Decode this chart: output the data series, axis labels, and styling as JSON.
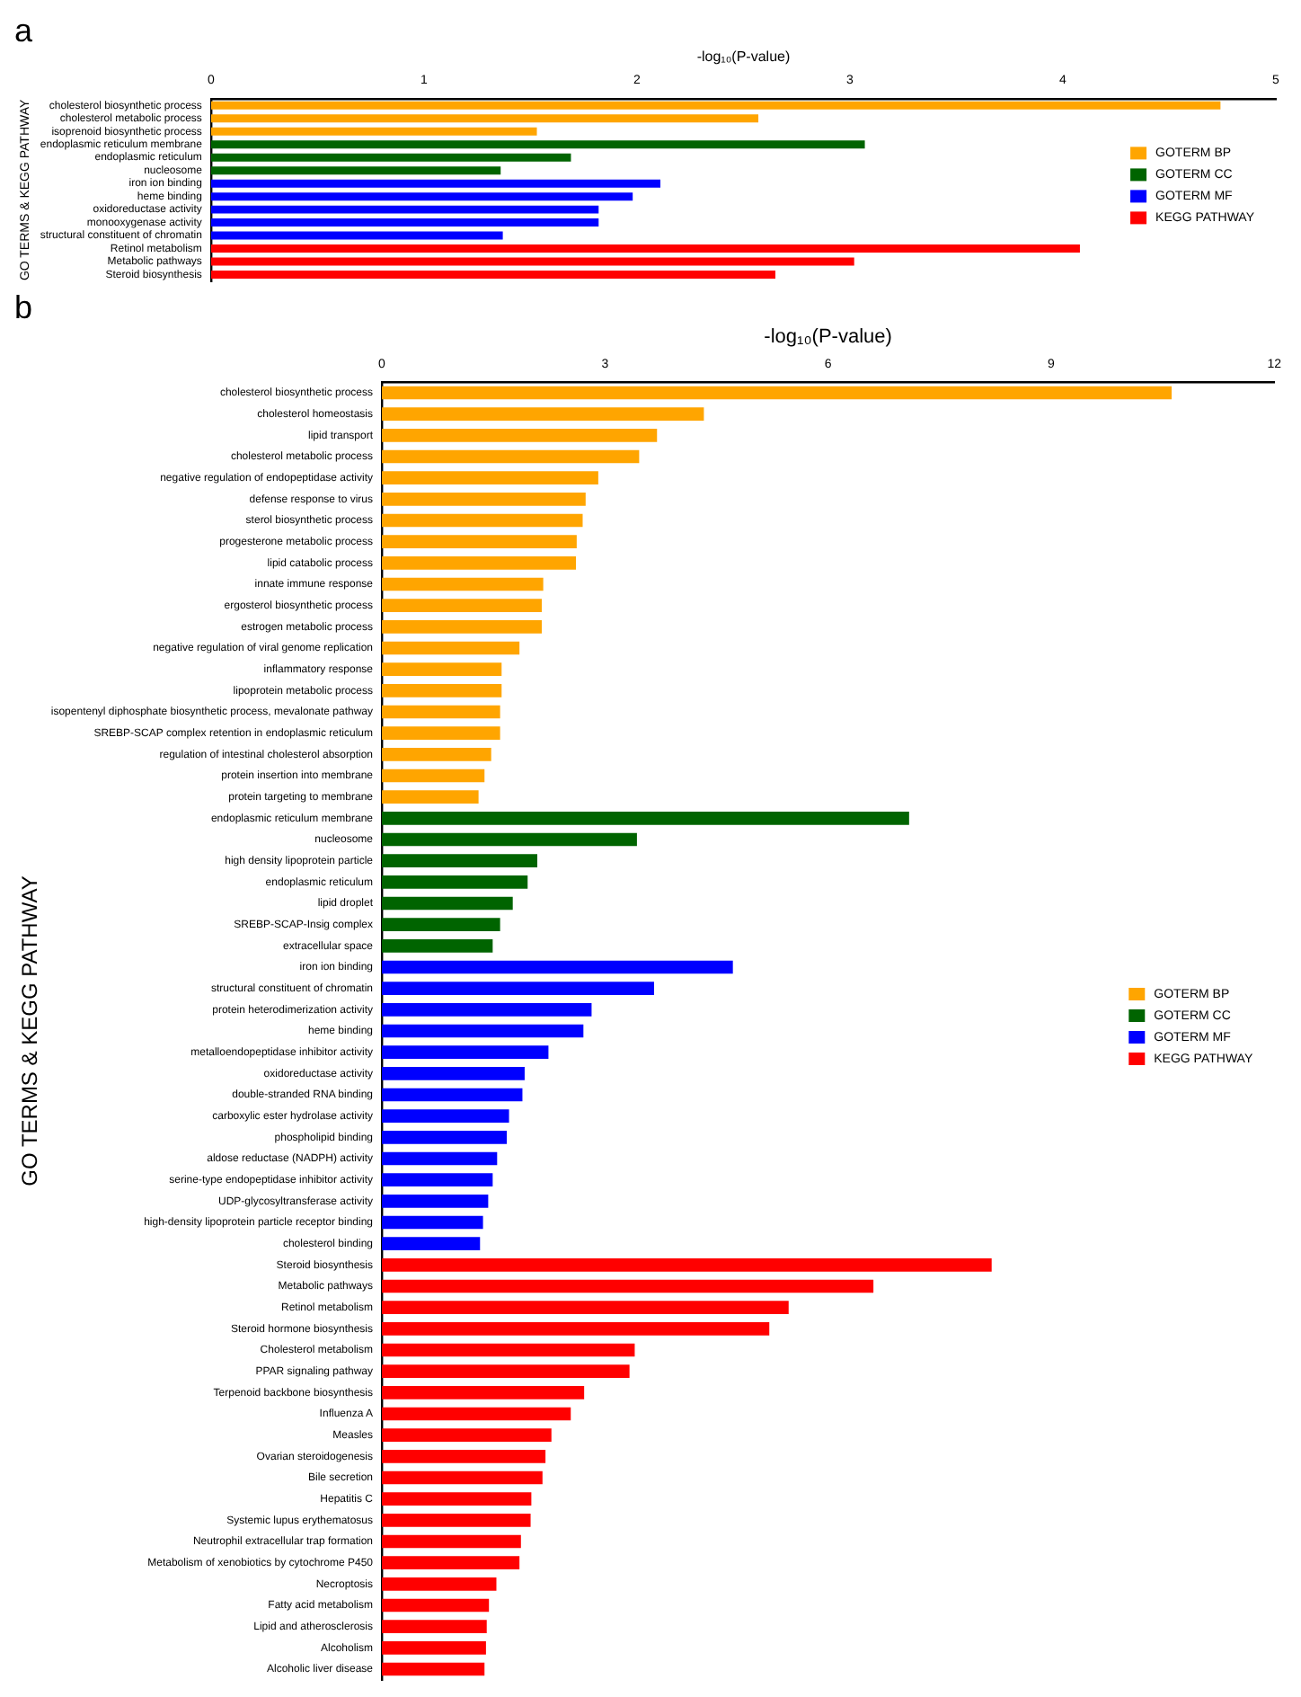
{
  "chart_data": [
    {
      "type": "bar",
      "title": "a",
      "xlabel": "-log₁₀(P-value)",
      "ylabel": "GO TERMS & KEGG PATHWAY",
      "orientation": "horizontal",
      "categories": [
        "cholesterol biosynthetic process",
        "cholesterol metabolic process",
        "isoprenoid biosynthetic process",
        "endoplasmic reticulum membrane",
        "endoplasmic reticulum",
        "nucleosome",
        "iron ion binding",
        "heme binding",
        "oxidoreductase activity",
        "monooxygenase activity",
        "structural constituent of chromatin",
        "Retinol metabolism",
        "Metabolic pathways",
        "Steroid biosynthesis"
      ],
      "series": [
        {
          "name": "GOTERM BP",
          "color": "#ffa500",
          "values": [
            4.74,
            2.57,
            1.53,
            null,
            null,
            null,
            null,
            null,
            null,
            null,
            null,
            null,
            null,
            null
          ]
        },
        {
          "name": "GOTERM CC",
          "color": "#006400",
          "values": [
            null,
            null,
            null,
            3.07,
            1.69,
            1.36,
            null,
            null,
            null,
            null,
            null,
            null,
            null,
            null
          ]
        },
        {
          "name": "GOTERM MF",
          "color": "#0000ff",
          "values": [
            null,
            null,
            null,
            null,
            null,
            null,
            2.11,
            1.98,
            1.82,
            1.82,
            1.37,
            null,
            null,
            null
          ]
        },
        {
          "name": "KEGG PATHWAY",
          "color": "#ff0000",
          "values": [
            null,
            null,
            null,
            null,
            null,
            null,
            null,
            null,
            null,
            null,
            null,
            4.08,
            3.02,
            2.65
          ]
        }
      ],
      "xlim": [
        0,
        5
      ],
      "xticks": [
        0,
        1,
        2,
        3,
        4,
        5
      ],
      "grid": false,
      "legend": "right"
    },
    {
      "type": "bar",
      "title": "b",
      "xlabel": "-log₁₀(P-value)",
      "ylabel": "GO TERMS & KEGG PATHWAY",
      "orientation": "horizontal",
      "categories": [
        "cholesterol biosynthetic process",
        "cholesterol homeostasis",
        "lipid transport",
        "cholesterol metabolic process",
        "negative regulation of endopeptidase activity",
        "defense response to virus",
        "sterol biosynthetic process",
        "progesterone metabolic process",
        "lipid catabolic process",
        "innate immune response",
        "ergosterol biosynthetic process",
        "estrogen metabolic process",
        "negative regulation of viral genome replication",
        "inflammatory response",
        "lipoprotein metabolic process",
        "isopentenyl diphosphate biosynthetic process, mevalonate pathway",
        "SREBP-SCAP complex retention in endoplasmic reticulum",
        "regulation of intestinal cholesterol absorption",
        "protein insertion into membrane",
        "protein targeting to membrane",
        "endoplasmic reticulum membrane",
        "nucleosome",
        "high density lipoprotein particle",
        "endoplasmic reticulum",
        "lipid droplet",
        "SREBP-SCAP-Insig complex",
        "extracellular space",
        "iron ion binding",
        "structural constituent of chromatin",
        "protein heterodimerization activity",
        "heme binding",
        "metalloendopeptidase inhibitor activity",
        "oxidoreductase activity",
        "double-stranded RNA binding",
        "carboxylic ester hydrolase activity",
        "phospholipid binding",
        "aldose reductase (NADPH) activity",
        "serine-type endopeptidase inhibitor activity",
        "UDP-glycosyltransferase activity",
        "high-density lipoprotein particle receptor binding",
        "cholesterol binding",
        "Steroid biosynthesis",
        "Metabolic pathways",
        "Retinol metabolism",
        "Steroid hormone biosynthesis",
        "Cholesterol metabolism",
        "PPAR signaling pathway",
        "Terpenoid backbone biosynthesis",
        "Influenza A",
        "Measles",
        "Ovarian steroidogenesis",
        "Bile secretion",
        "Hepatitis C",
        "Systemic lupus erythematosus",
        "Neutrophil extracellular trap formation",
        "Metabolism of xenobiotics by cytochrome P450",
        "Necroptosis",
        "Fatty acid metabolism",
        "Lipid and atherosclerosis",
        "Alcoholism",
        "Alcoholic liver disease"
      ],
      "series": [
        {
          "name": "GOTERM BP",
          "color": "#ffa500",
          "values": [
            10.62,
            4.33,
            3.7,
            3.46,
            2.91,
            2.74,
            2.7,
            2.62,
            2.61,
            2.17,
            2.15,
            2.15,
            1.85,
            1.61,
            1.61,
            1.59,
            1.59,
            1.47,
            1.38,
            1.3,
            null,
            null,
            null,
            null,
            null,
            null,
            null,
            null,
            null,
            null,
            null,
            null,
            null,
            null,
            null,
            null,
            null,
            null,
            null,
            null,
            null,
            null,
            null,
            null,
            null,
            null,
            null,
            null,
            null,
            null,
            null,
            null,
            null,
            null,
            null,
            null,
            null,
            null,
            null,
            null,
            null
          ]
        },
        {
          "name": "GOTERM CC",
          "color": "#006400",
          "values": [
            null,
            null,
            null,
            null,
            null,
            null,
            null,
            null,
            null,
            null,
            null,
            null,
            null,
            null,
            null,
            null,
            null,
            null,
            null,
            null,
            7.09,
            3.43,
            2.09,
            1.96,
            1.76,
            1.59,
            1.49,
            null,
            null,
            null,
            null,
            null,
            null,
            null,
            null,
            null,
            null,
            null,
            null,
            null,
            null,
            null,
            null,
            null,
            null,
            null,
            null,
            null,
            null,
            null,
            null,
            null,
            null,
            null,
            null,
            null,
            null,
            null,
            null,
            null,
            null
          ]
        },
        {
          "name": "GOTERM MF",
          "color": "#0000ff",
          "values": [
            null,
            null,
            null,
            null,
            null,
            null,
            null,
            null,
            null,
            null,
            null,
            null,
            null,
            null,
            null,
            null,
            null,
            null,
            null,
            null,
            null,
            null,
            null,
            null,
            null,
            null,
            null,
            4.72,
            3.66,
            2.82,
            2.71,
            2.24,
            1.92,
            1.89,
            1.71,
            1.68,
            1.55,
            1.49,
            1.43,
            1.36,
            1.32,
            null,
            null,
            null,
            null,
            null,
            null,
            null,
            null,
            null,
            null,
            null,
            null,
            null,
            null,
            null,
            null,
            null,
            null,
            null,
            null
          ]
        },
        {
          "name": "KEGG PATHWAY",
          "color": "#ff0000",
          "values": [
            null,
            null,
            null,
            null,
            null,
            null,
            null,
            null,
            null,
            null,
            null,
            null,
            null,
            null,
            null,
            null,
            null,
            null,
            null,
            null,
            null,
            null,
            null,
            null,
            null,
            null,
            null,
            null,
            null,
            null,
            null,
            null,
            null,
            null,
            null,
            null,
            null,
            null,
            null,
            null,
            null,
            8.2,
            6.61,
            5.47,
            5.21,
            3.4,
            3.33,
            2.72,
            2.54,
            2.28,
            2.2,
            2.16,
            2.01,
            2.0,
            1.87,
            1.85,
            1.54,
            1.44,
            1.41,
            1.4,
            1.38
          ]
        }
      ],
      "xlim": [
        0,
        12
      ],
      "xticks": [
        0,
        3,
        6,
        9,
        12
      ],
      "grid": false,
      "legend": "right"
    }
  ]
}
